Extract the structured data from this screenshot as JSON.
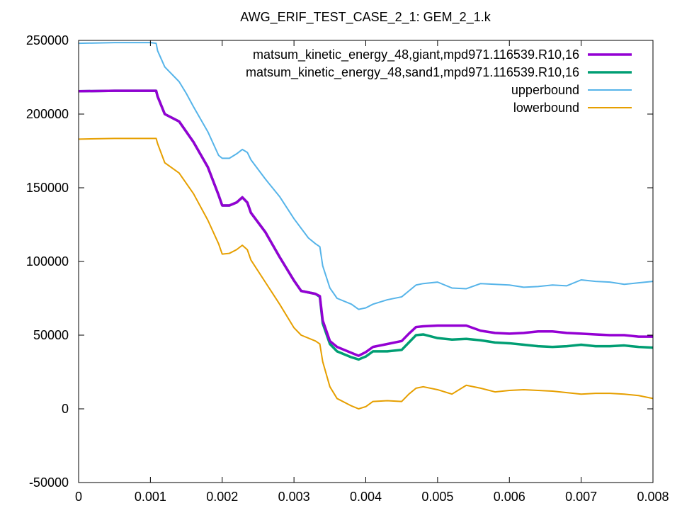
{
  "chart_data": {
    "type": "line",
    "title": "AWG_ERIF_TEST_CASE_2_1: GEM_2_1.k",
    "xlabel": "",
    "ylabel": "",
    "xlim": [
      0,
      0.008
    ],
    "ylim": [
      -50000,
      250000
    ],
    "x_ticks": [
      "0",
      "0.001",
      "0.002",
      "0.003",
      "0.004",
      "0.005",
      "0.006",
      "0.007",
      "0.008"
    ],
    "y_ticks": [
      "-50000",
      "0",
      "50000",
      "100000",
      "150000",
      "200000",
      "250000"
    ],
    "grid": false,
    "legend_position": "top-right",
    "series": [
      {
        "name": "matsum_kinetic_energy_48,giant,mpd971.116539.R10,16",
        "color": "#9400d3",
        "width": 3.5,
        "points": [
          [
            0,
            215500
          ],
          [
            0.0005,
            215800
          ],
          [
            0.00108,
            215800
          ],
          [
            0.0011,
            212000
          ],
          [
            0.0012,
            200000
          ],
          [
            0.0014,
            195000
          ],
          [
            0.0016,
            181000
          ],
          [
            0.0018,
            164000
          ],
          [
            0.00195,
            145000
          ],
          [
            0.002,
            138000
          ],
          [
            0.0021,
            138000
          ],
          [
            0.0022,
            140000
          ],
          [
            0.00228,
            143500
          ],
          [
            0.00235,
            140000
          ],
          [
            0.0024,
            133000
          ],
          [
            0.0026,
            120000
          ],
          [
            0.0028,
            103000
          ],
          [
            0.003,
            87000
          ],
          [
            0.0031,
            80000
          ],
          [
            0.0033,
            78000
          ],
          [
            0.00336,
            76500
          ],
          [
            0.0034,
            60000
          ],
          [
            0.0035,
            46000
          ],
          [
            0.0036,
            42000
          ],
          [
            0.0038,
            38000
          ],
          [
            0.0039,
            36000
          ],
          [
            0.004,
            38500
          ],
          [
            0.0041,
            42000
          ],
          [
            0.0043,
            44000
          ],
          [
            0.0045,
            46000
          ],
          [
            0.0046,
            51000
          ],
          [
            0.0047,
            55500
          ],
          [
            0.0048,
            56000
          ],
          [
            0.005,
            56500
          ],
          [
            0.0054,
            56500
          ],
          [
            0.0056,
            53000
          ],
          [
            0.0058,
            51500
          ],
          [
            0.006,
            51000
          ],
          [
            0.0062,
            51500
          ],
          [
            0.0064,
            52500
          ],
          [
            0.0066,
            52500
          ],
          [
            0.0068,
            51500
          ],
          [
            0.007,
            51000
          ],
          [
            0.0072,
            50500
          ],
          [
            0.0074,
            50000
          ],
          [
            0.0076,
            50000
          ],
          [
            0.0078,
            49000
          ],
          [
            0.008,
            49000
          ]
        ]
      },
      {
        "name": "matsum_kinetic_energy_48,sand1,mpd971.116539.R10,16",
        "color": "#009e73",
        "width": 3.5,
        "points": [
          [
            0,
            215500
          ],
          [
            0.0005,
            215800
          ],
          [
            0.00108,
            215800
          ],
          [
            0.0011,
            212000
          ],
          [
            0.0012,
            200000
          ],
          [
            0.0014,
            195000
          ],
          [
            0.0016,
            181000
          ],
          [
            0.0018,
            164000
          ],
          [
            0.00195,
            145000
          ],
          [
            0.002,
            138000
          ],
          [
            0.0021,
            138000
          ],
          [
            0.0022,
            140000
          ],
          [
            0.00228,
            143500
          ],
          [
            0.00235,
            140000
          ],
          [
            0.0024,
            133000
          ],
          [
            0.0026,
            120000
          ],
          [
            0.0028,
            103000
          ],
          [
            0.003,
            87000
          ],
          [
            0.0031,
            80000
          ],
          [
            0.0033,
            78000
          ],
          [
            0.00336,
            76000
          ],
          [
            0.0034,
            58000
          ],
          [
            0.0035,
            44000
          ],
          [
            0.0036,
            39000
          ],
          [
            0.0038,
            35000
          ],
          [
            0.0039,
            33500
          ],
          [
            0.004,
            35500
          ],
          [
            0.0041,
            39000
          ],
          [
            0.0043,
            39000
          ],
          [
            0.0045,
            40000
          ],
          [
            0.0046,
            45000
          ],
          [
            0.0047,
            50000
          ],
          [
            0.0048,
            50500
          ],
          [
            0.005,
            48000
          ],
          [
            0.0052,
            47000
          ],
          [
            0.0054,
            47500
          ],
          [
            0.0056,
            46500
          ],
          [
            0.0058,
            45000
          ],
          [
            0.006,
            44500
          ],
          [
            0.0062,
            43500
          ],
          [
            0.0064,
            42500
          ],
          [
            0.0066,
            42000
          ],
          [
            0.0068,
            42500
          ],
          [
            0.007,
            43500
          ],
          [
            0.0072,
            42500
          ],
          [
            0.0074,
            42500
          ],
          [
            0.0076,
            43000
          ],
          [
            0.0078,
            42000
          ],
          [
            0.008,
            41500
          ]
        ]
      },
      {
        "name": "upperbound",
        "color": "#56b4e9",
        "width": 2,
        "points": [
          [
            0,
            248000
          ],
          [
            0.0005,
            248500
          ],
          [
            0.001,
            248500
          ],
          [
            0.00108,
            248000
          ],
          [
            0.0011,
            243000
          ],
          [
            0.0012,
            232000
          ],
          [
            0.0014,
            222000
          ],
          [
            0.0015,
            214000
          ],
          [
            0.0016,
            205000
          ],
          [
            0.0018,
            188000
          ],
          [
            0.00195,
            172000
          ],
          [
            0.002,
            170000
          ],
          [
            0.0021,
            170000
          ],
          [
            0.0022,
            173000
          ],
          [
            0.00228,
            176000
          ],
          [
            0.00235,
            174000
          ],
          [
            0.0024,
            169000
          ],
          [
            0.0026,
            156000
          ],
          [
            0.0028,
            144000
          ],
          [
            0.003,
            129000
          ],
          [
            0.0032,
            116000
          ],
          [
            0.0033,
            112000
          ],
          [
            0.00336,
            110000
          ],
          [
            0.0034,
            97000
          ],
          [
            0.0035,
            82000
          ],
          [
            0.0036,
            75000
          ],
          [
            0.0038,
            71000
          ],
          [
            0.0039,
            67500
          ],
          [
            0.004,
            68500
          ],
          [
            0.0041,
            71000
          ],
          [
            0.0043,
            74000
          ],
          [
            0.0045,
            76000
          ],
          [
            0.0046,
            80000
          ],
          [
            0.0047,
            84000
          ],
          [
            0.0048,
            85000
          ],
          [
            0.005,
            86000
          ],
          [
            0.0052,
            82000
          ],
          [
            0.0054,
            81500
          ],
          [
            0.0056,
            85000
          ],
          [
            0.0058,
            84500
          ],
          [
            0.006,
            84000
          ],
          [
            0.0062,
            82500
          ],
          [
            0.0064,
            83000
          ],
          [
            0.0066,
            84000
          ],
          [
            0.0068,
            83500
          ],
          [
            0.007,
            87500
          ],
          [
            0.0072,
            86500
          ],
          [
            0.0074,
            86000
          ],
          [
            0.0076,
            84500
          ],
          [
            0.0078,
            85500
          ],
          [
            0.008,
            86500
          ]
        ]
      },
      {
        "name": "lowerbound",
        "color": "#e69f00",
        "width": 2,
        "points": [
          [
            0,
            183000
          ],
          [
            0.0005,
            183500
          ],
          [
            0.00108,
            183500
          ],
          [
            0.0011,
            180000
          ],
          [
            0.0012,
            167000
          ],
          [
            0.0014,
            160000
          ],
          [
            0.0016,
            146000
          ],
          [
            0.0018,
            128000
          ],
          [
            0.00195,
            112000
          ],
          [
            0.002,
            105000
          ],
          [
            0.0021,
            105500
          ],
          [
            0.0022,
            108000
          ],
          [
            0.00228,
            111000
          ],
          [
            0.00235,
            108000
          ],
          [
            0.0024,
            101000
          ],
          [
            0.0026,
            86000
          ],
          [
            0.0028,
            71000
          ],
          [
            0.003,
            55000
          ],
          [
            0.0031,
            50000
          ],
          [
            0.0033,
            46000
          ],
          [
            0.00336,
            44000
          ],
          [
            0.0034,
            32000
          ],
          [
            0.0035,
            15000
          ],
          [
            0.0036,
            7000
          ],
          [
            0.0038,
            2000
          ],
          [
            0.0039,
            0
          ],
          [
            0.004,
            1500
          ],
          [
            0.0041,
            5000
          ],
          [
            0.0043,
            5500
          ],
          [
            0.0045,
            5000
          ],
          [
            0.0046,
            10000
          ],
          [
            0.0047,
            14000
          ],
          [
            0.0048,
            15000
          ],
          [
            0.005,
            13000
          ],
          [
            0.0052,
            10000
          ],
          [
            0.0054,
            16000
          ],
          [
            0.0056,
            14000
          ],
          [
            0.0058,
            11500
          ],
          [
            0.006,
            12500
          ],
          [
            0.0062,
            13000
          ],
          [
            0.0064,
            12500
          ],
          [
            0.0066,
            12000
          ],
          [
            0.0068,
            11000
          ],
          [
            0.007,
            10000
          ],
          [
            0.0072,
            10500
          ],
          [
            0.0074,
            10500
          ],
          [
            0.0076,
            10000
          ],
          [
            0.0078,
            9000
          ],
          [
            0.008,
            7000
          ]
        ]
      }
    ]
  }
}
